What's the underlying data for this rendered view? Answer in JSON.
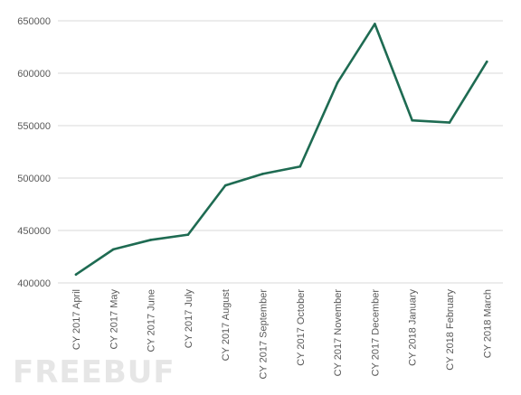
{
  "chart_data": {
    "type": "line",
    "title": "",
    "xlabel": "",
    "ylabel": "",
    "categories": [
      "CY 2017 April",
      "CY 2017 May",
      "CY 2017 June",
      "CY 2017 July",
      "CY 2017 August",
      "CY 2017 September",
      "CY 2017 October",
      "CY 2017 November",
      "CY 2017 December",
      "CY 2018 January",
      "CY 2018 February",
      "CY 2018 March"
    ],
    "series": [
      {
        "values": [
          408000,
          432000,
          441000,
          446000,
          493000,
          504000,
          511000,
          591000,
          647000,
          555000,
          553000,
          611000
        ]
      }
    ],
    "ylim": [
      400000,
      650000
    ],
    "yticks": [
      "400000",
      "450000",
      "500000",
      "550000",
      "600000",
      "650000"
    ],
    "grid": true,
    "legend": "none",
    "colors": {
      "line": "#1e6b52",
      "grid": "#d9d9d9",
      "text": "#595959"
    }
  },
  "watermark": "FREEBUF"
}
